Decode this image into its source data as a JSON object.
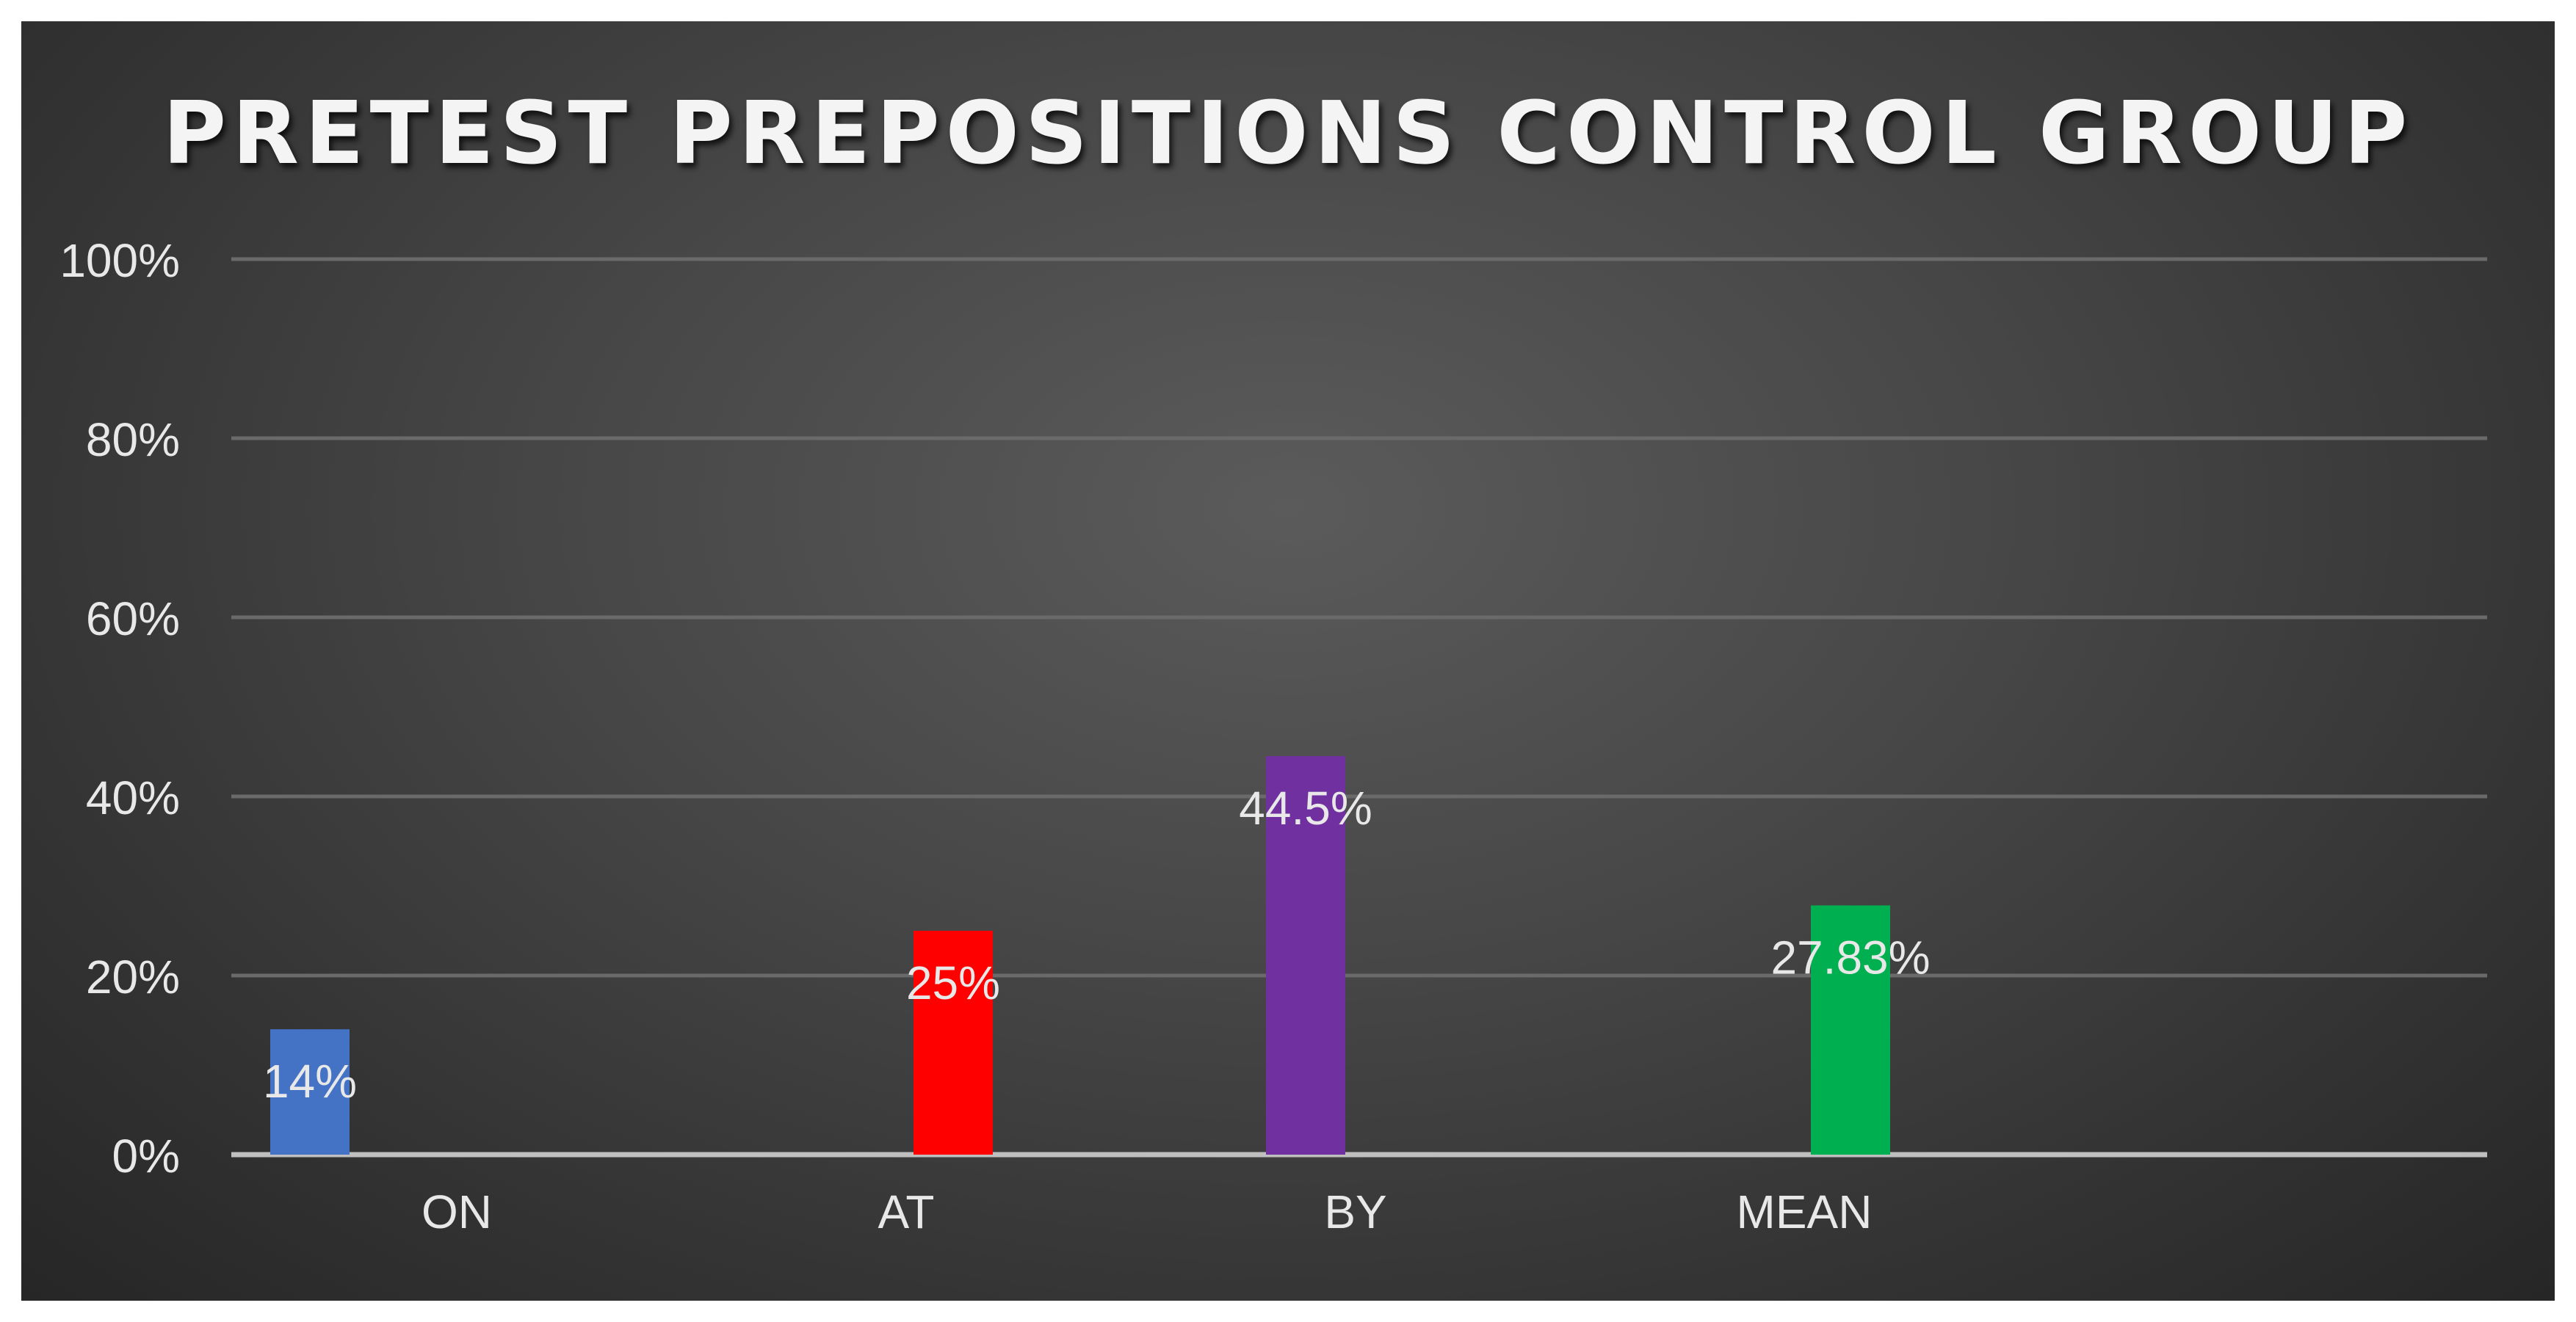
{
  "chart_data": {
    "type": "bar",
    "title": "PRETEST PREPOSITIONS CONTROL GROUP",
    "categories": [
      "ON",
      "AT",
      "BY",
      "MEAN"
    ],
    "values": [
      14,
      25,
      44.5,
      27.83
    ],
    "data_labels": [
      "14%",
      "25%",
      "44.5%",
      "27.83%"
    ],
    "bar_colors": [
      "#4472c4",
      "#ff0000",
      "#7030a0",
      "#00b050"
    ],
    "ylim": [
      0,
      100
    ],
    "yticks": [
      0,
      20,
      40,
      60,
      80,
      100
    ],
    "ytick_labels": [
      "0%",
      "20%",
      "40%",
      "60%",
      "80%",
      "100%"
    ],
    "xlabel": "",
    "ylabel": "",
    "grid": true,
    "legend": "none"
  },
  "colors": {
    "background": "#3f3f3f",
    "gridline": "#6a6a6a",
    "axis_line": "#bfbfbf",
    "text": "#e8e8e8"
  }
}
